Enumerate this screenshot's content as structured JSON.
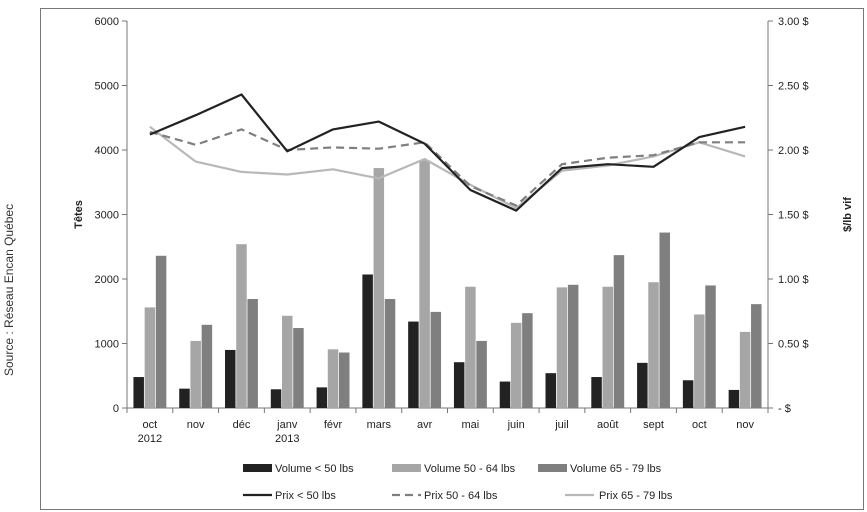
{
  "source_note": "Source : Réseau Encan Québec",
  "chart_data": {
    "type": "bar",
    "categories": [
      [
        "oct",
        "2012"
      ],
      [
        "nov"
      ],
      [
        "déc"
      ],
      [
        "janv",
        "2013"
      ],
      [
        "févr"
      ],
      [
        "mars"
      ],
      [
        "avr"
      ],
      [
        "mai"
      ],
      [
        "juin"
      ],
      [
        "juil"
      ],
      [
        "août"
      ],
      [
        "sept"
      ],
      [
        "oct"
      ],
      [
        "nov"
      ]
    ],
    "ylabel": "Têtes",
    "y2label": "$/lb vif",
    "ylim": [
      0,
      6000
    ],
    "y2lim": [
      0,
      3.0
    ],
    "yticks": [
      "0",
      "1000",
      "2000",
      "3000",
      "4000",
      "5000",
      "6000"
    ],
    "y2ticks": [
      "-  $",
      "0.50 $",
      "1.00 $",
      "1.50 $",
      "2.00 $",
      "2.50 $",
      "3.00 $"
    ],
    "bar_series": [
      {
        "name": "Volume < 50 lbs",
        "color": "#222222",
        "values": [
          480,
          300,
          900,
          290,
          320,
          2070,
          1340,
          710,
          410,
          540,
          480,
          700,
          430,
          280
        ]
      },
      {
        "name": "Volume 50 - 64 lbs",
        "color": "#a6a6a6",
        "values": [
          1560,
          1040,
          2540,
          1430,
          910,
          3720,
          3840,
          1880,
          1320,
          1870,
          1880,
          1950,
          1450,
          1180
        ]
      },
      {
        "name": "Volume 65 - 79 lbs",
        "color": "#7f7f7f",
        "values": [
          2360,
          1290,
          1690,
          1240,
          860,
          1690,
          1490,
          1040,
          1470,
          1910,
          2370,
          2720,
          1900,
          1610
        ]
      }
    ],
    "line_series": [
      {
        "name": "Prix < 50 lbs",
        "color": "#222222",
        "dash": "",
        "values": [
          2.12,
          2.27,
          2.43,
          1.99,
          2.16,
          2.22,
          2.05,
          1.69,
          1.53,
          1.86,
          1.89,
          1.87,
          2.1,
          2.18
        ]
      },
      {
        "name": "Prix 50 - 64 lbs",
        "color": "#7f7f7f",
        "dash": "8,5",
        "values": [
          2.14,
          2.04,
          2.16,
          2.0,
          2.02,
          2.01,
          2.06,
          1.72,
          1.57,
          1.89,
          1.94,
          1.96,
          2.06,
          2.06
        ]
      },
      {
        "name": "Prix 65 - 79 lbs",
        "color": "#b8b8b8",
        "dash": "",
        "values": [
          2.18,
          1.91,
          1.83,
          1.81,
          1.85,
          1.78,
          1.93,
          1.73,
          1.55,
          1.84,
          1.88,
          1.95,
          2.06,
          1.95
        ]
      }
    ],
    "legend_position": "bottom",
    "grid": false
  }
}
